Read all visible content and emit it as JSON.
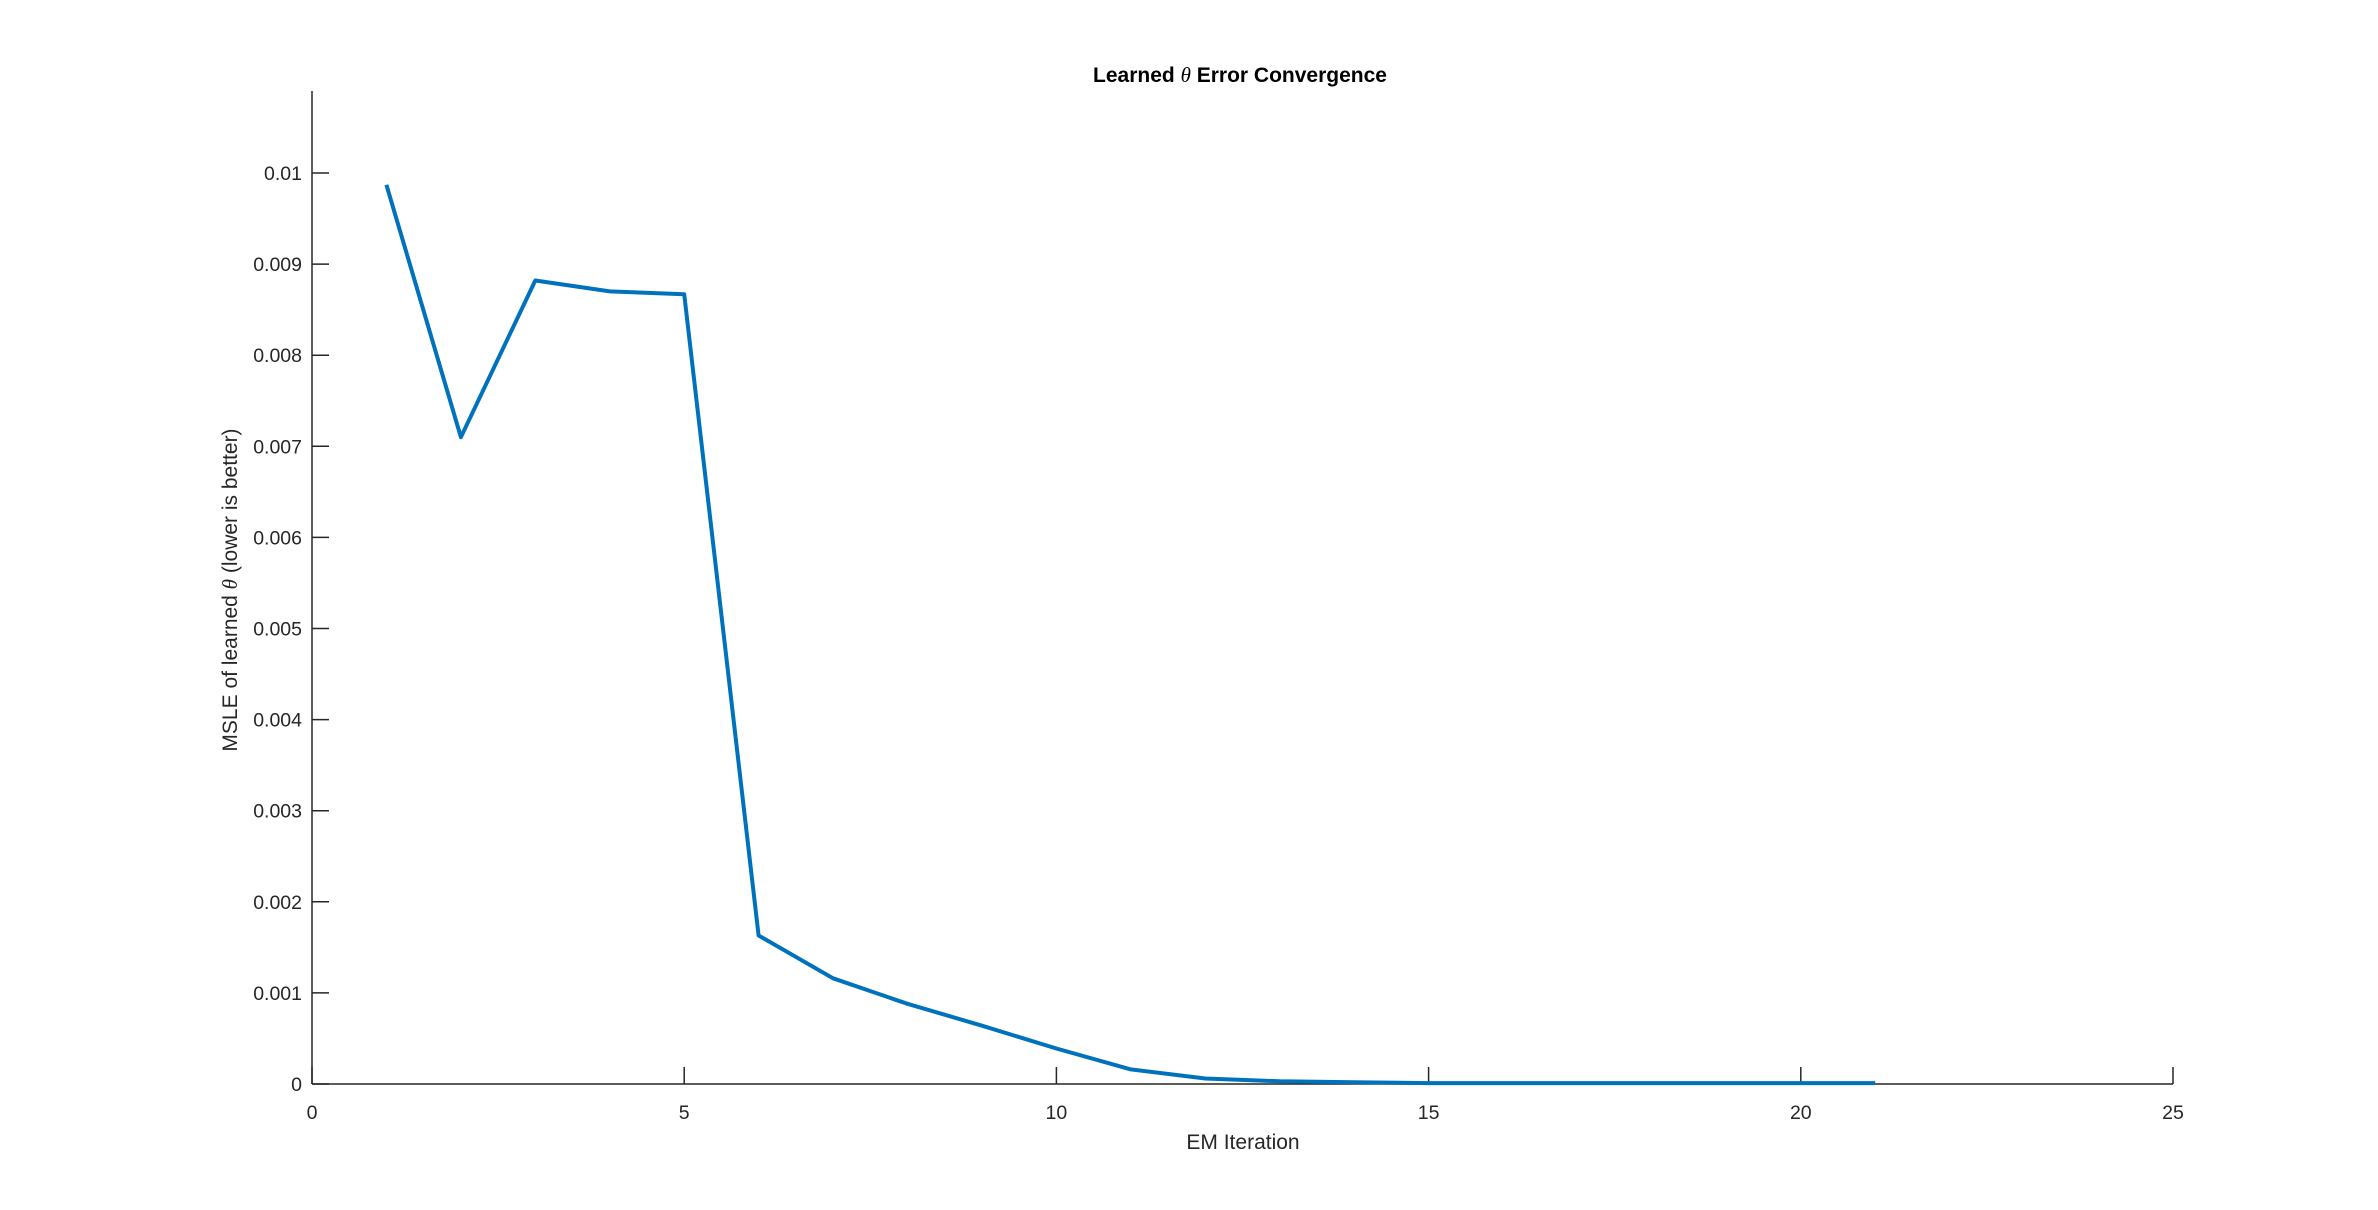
{
  "chart_data": {
    "type": "line",
    "title_parts": [
      "Learned ",
      "θ",
      " Error Convergence"
    ],
    "xlabel": "EM Iteration",
    "ylabel_parts": [
      "MSLE of learned ",
      "θ",
      " (lower is better)"
    ],
    "xlim": [
      0,
      25
    ],
    "ylim": [
      0,
      0.0109
    ],
    "x_ticks": [
      0,
      5,
      10,
      15,
      20,
      25
    ],
    "x_tick_labels": [
      "0",
      "5",
      "10",
      "15",
      "20",
      "25"
    ],
    "y_ticks": [
      0,
      0.001,
      0.002,
      0.003,
      0.004,
      0.005,
      0.006,
      0.007,
      0.008,
      0.009,
      0.01
    ],
    "y_tick_labels": [
      "0",
      "0.001",
      "0.002",
      "0.003",
      "0.004",
      "0.005",
      "0.006",
      "0.007",
      "0.008",
      "0.009",
      "0.01"
    ],
    "grid": false,
    "line_color": "#0072BD",
    "axis_color": "#262626",
    "series": [
      {
        "x": [
          1,
          2,
          3,
          4,
          5,
          6,
          7,
          8,
          9,
          10,
          11,
          12,
          13,
          14,
          15,
          16,
          17,
          18,
          19,
          20,
          21
        ],
        "values": [
          0.00987,
          0.0071,
          0.00882,
          0.0087,
          0.00867,
          0.00163,
          0.00116,
          0.00088,
          0.00064,
          0.00039,
          0.00016,
          6e-05,
          3e-05,
          2e-05,
          1e-05,
          1e-05,
          1e-05,
          1e-05,
          1e-05,
          1e-05,
          1e-05
        ]
      }
    ]
  }
}
